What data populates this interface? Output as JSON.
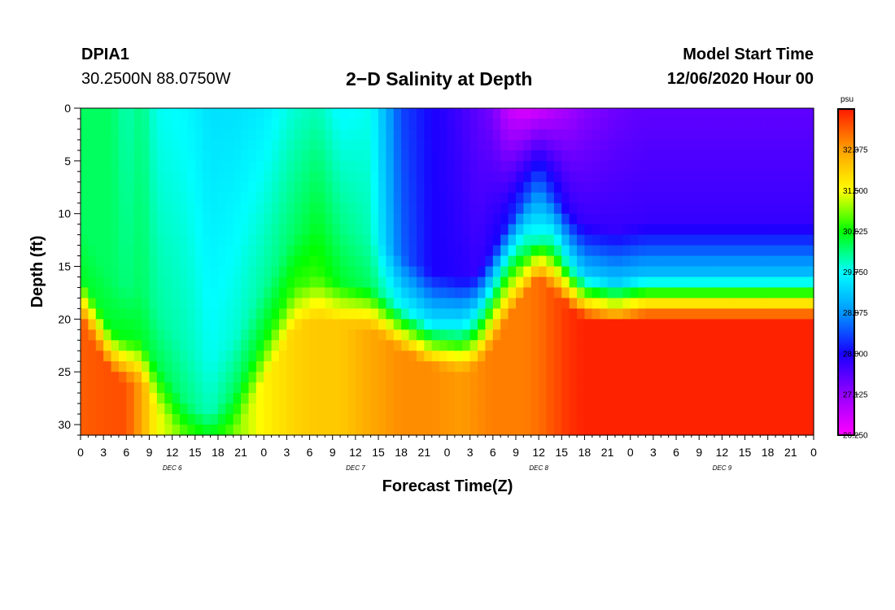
{
  "header": {
    "station_id": "DPIA1",
    "station_coords": "30.2500N 88.0750W",
    "title": "2−D Salinity at Depth",
    "start_label": "Model Start Time",
    "start_value": "12/06/2020 Hour 00"
  },
  "chart_data": {
    "type": "heatmap",
    "title": "2−D Salinity at Depth",
    "xlabel": "Forecast Time(Z)",
    "ylabel": "Depth (ft)",
    "xlim": [
      0,
      96
    ],
    "ylim": [
      31,
      0
    ],
    "x_tick_values": [
      0,
      3,
      6,
      9,
      12,
      15,
      18,
      21,
      24,
      27,
      30,
      33,
      36,
      39,
      42,
      45,
      48,
      51,
      54,
      57,
      60,
      63,
      66,
      69,
      72,
      75,
      78,
      81,
      84,
      87,
      90,
      93,
      96
    ],
    "x_tick_labels": [
      "0",
      "3",
      "6",
      "9",
      "12",
      "15",
      "18",
      "21",
      "0",
      "3",
      "6",
      "9",
      "12",
      "15",
      "18",
      "21",
      "0",
      "3",
      "6",
      "9",
      "12",
      "15",
      "18",
      "21",
      "0",
      "3",
      "6",
      "9",
      "12",
      "15",
      "18",
      "21",
      "0"
    ],
    "day_labels": [
      {
        "label": "DEC 6",
        "hour": 12
      },
      {
        "label": "DEC 7",
        "hour": 36
      },
      {
        "label": "DEC 8",
        "hour": 60
      },
      {
        "label": "DEC 9",
        "hour": 84
      }
    ],
    "y_ticks": [
      0,
      5,
      10,
      15,
      20,
      25,
      30
    ],
    "colorbar": {
      "unit": "psu",
      "min": 26.25,
      "max": 33.25,
      "tick_values": [
        26.25,
        27.125,
        28.0,
        28.875,
        29.75,
        30.625,
        31.5,
        32.375
      ],
      "tick_labels": [
        "26.250",
        "27.125",
        "28.000",
        "28.875",
        "29.750",
        "30.625",
        "31.500",
        "32.375"
      ],
      "stops": [
        {
          "value": 26.25,
          "color": "#ff00ff"
        },
        {
          "value": 27.125,
          "color": "#9400ff"
        },
        {
          "value": 28.0,
          "color": "#1800ff"
        },
        {
          "value": 28.875,
          "color": "#0096ff"
        },
        {
          "value": 29.75,
          "color": "#00ffff"
        },
        {
          "value": 30.625,
          "color": "#00ff00"
        },
        {
          "value": 31.5,
          "color": "#ffff00"
        },
        {
          "value": 32.375,
          "color": "#ffa000"
        },
        {
          "value": 33.25,
          "color": "#ff1a00"
        }
      ]
    },
    "field": {
      "time_hours": [
        0,
        4,
        6,
        8,
        10,
        14,
        17,
        20,
        24,
        28,
        31,
        34,
        38,
        42,
        46,
        50,
        52,
        54,
        56,
        58,
        60,
        62,
        64,
        66,
        70,
        74,
        78,
        82,
        86,
        90,
        96
      ],
      "cline_depth_ft": [
        16,
        21,
        22,
        22,
        24.5,
        28,
        29,
        27,
        22,
        17,
        16,
        16.5,
        17,
        19,
        20.5,
        21,
        20.5,
        18.5,
        16,
        14,
        12,
        13.5,
        15,
        16,
        16.5,
        16,
        16,
        16,
        16,
        16,
        16
      ],
      "surface_psu": [
        30.3,
        30.3,
        30.0,
        30.2,
        29.8,
        29.7,
        29.5,
        29.5,
        29.6,
        29.9,
        30.0,
        29.7,
        29.8,
        28.4,
        28.0,
        27.7,
        27.5,
        27.3,
        26.7,
        26.5,
        26.6,
        26.8,
        27.0,
        27.2,
        27.4,
        27.5,
        27.5,
        27.5,
        27.5,
        27.5,
        27.5
      ],
      "upper_psu": [
        30.3,
        30.3,
        30.2,
        30.3,
        30.1,
        30.0,
        29.8,
        29.9,
        30.1,
        30.3,
        30.5,
        30.2,
        30.0,
        28.6,
        28.0,
        27.9,
        27.8,
        28.0,
        28.2,
        28.5,
        28.6,
        28.3,
        27.9,
        27.8,
        27.8,
        27.8,
        27.8,
        27.8,
        27.8,
        27.8,
        27.8
      ],
      "cline_top_psu": [
        30.5,
        30.5,
        30.6,
        30.5,
        30.4,
        30.2,
        30.0,
        30.3,
        30.6,
        30.8,
        30.8,
        30.5,
        30.3,
        29.8,
        29.6,
        29.8,
        30.2,
        30.6,
        30.8,
        30.5,
        29.8,
        30.4,
        29.9,
        29.4,
        29.3,
        29.3,
        29.3,
        29.3,
        29.3,
        29.3,
        29.3
      ],
      "bottom_psu": [
        32.8,
        32.9,
        32.9,
        32.3,
        31.5,
        30.9,
        30.6,
        31.0,
        31.6,
        31.9,
        32.0,
        32.0,
        32.3,
        32.5,
        32.5,
        32.4,
        32.5,
        32.6,
        32.6,
        32.6,
        32.7,
        32.9,
        33.1,
        33.2,
        33.2,
        33.2,
        33.2,
        33.2,
        33.2,
        33.2,
        33.2
      ]
    }
  }
}
